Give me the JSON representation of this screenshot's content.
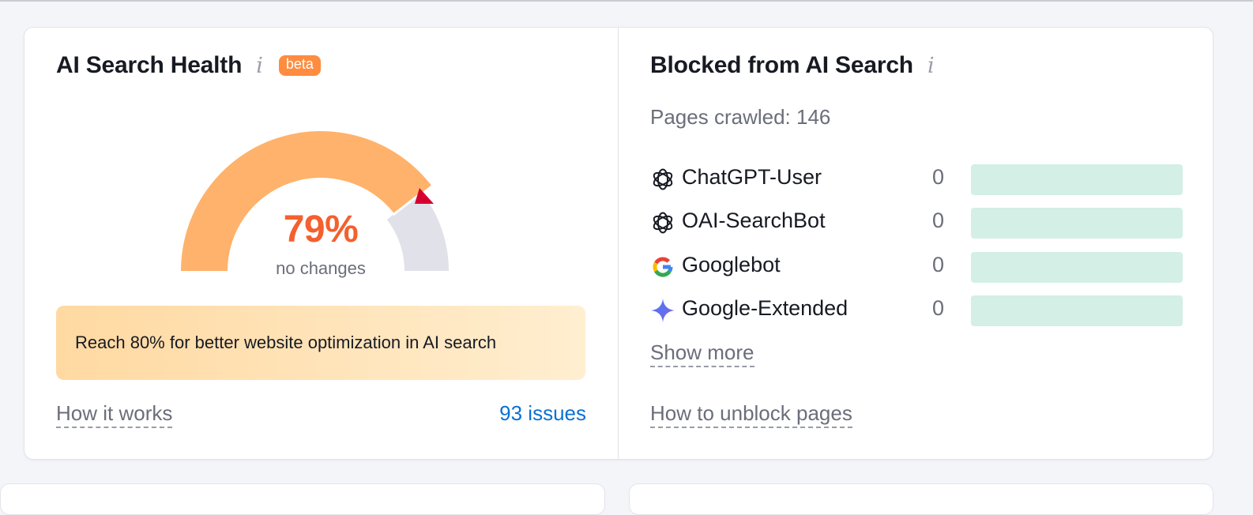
{
  "health": {
    "title": "AI Search Health",
    "info_icon": "i",
    "badge": "beta",
    "score": 79,
    "score_label": "79%",
    "change_label": "no changes",
    "callout": "Reach 80% for better website optimization in AI search",
    "how_link": "How it works",
    "issues_link": "93 issues",
    "colors": {
      "fill": "#ffb26b",
      "track": "#e0e1e9",
      "marker": "#d6002f",
      "score": "#f4602e"
    }
  },
  "blocked": {
    "title": "Blocked from AI Search",
    "info_icon": "i",
    "crawled": "Pages crawled: 146",
    "bots": [
      {
        "name": "ChatGPT-User",
        "count": "0",
        "icon": "openai-icon"
      },
      {
        "name": "OAI-SearchBot",
        "count": "0",
        "icon": "openai-icon"
      },
      {
        "name": "Googlebot",
        "count": "0",
        "icon": "google-icon"
      },
      {
        "name": "Google-Extended",
        "count": "0",
        "icon": "gemini-icon"
      }
    ],
    "show_more": "Show more",
    "unblock_link": "How to unblock pages"
  }
}
